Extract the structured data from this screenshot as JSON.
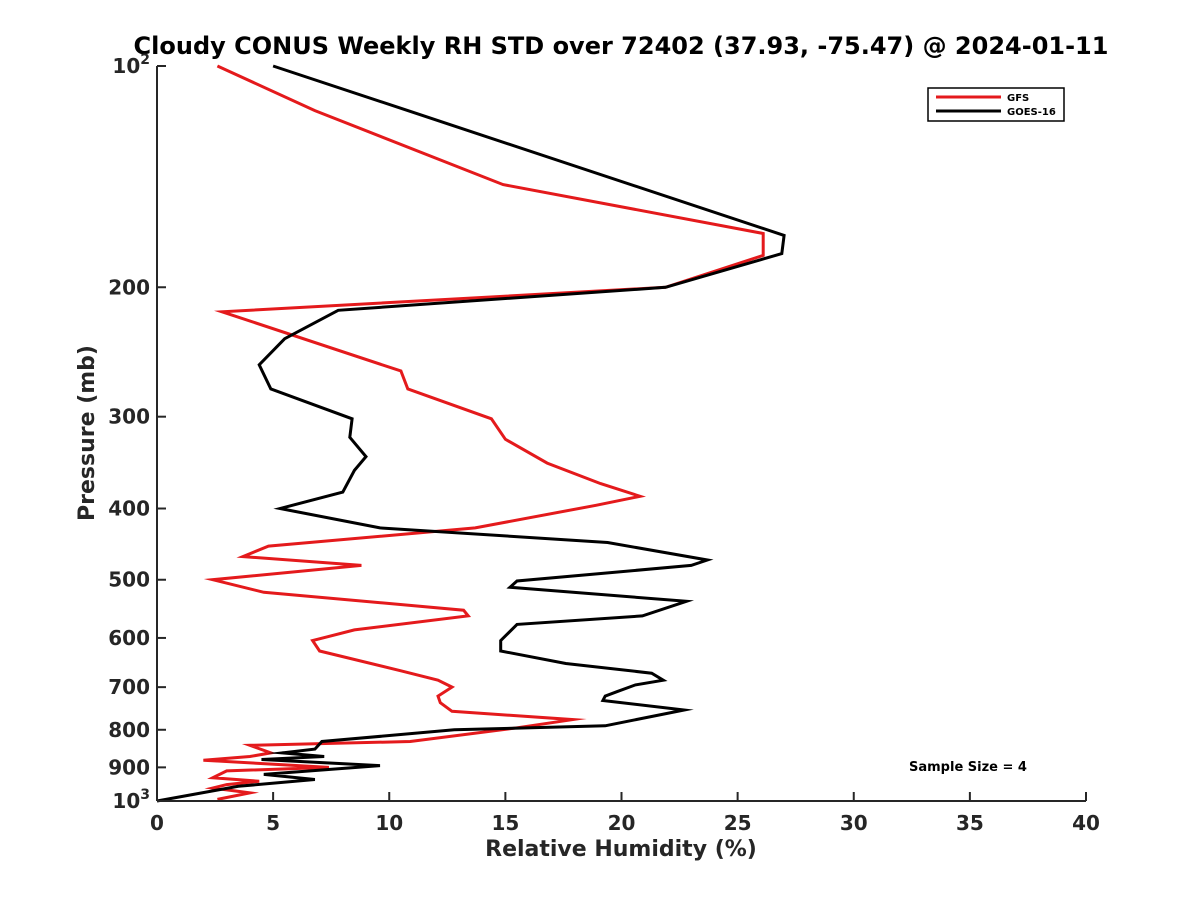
{
  "chart_data": {
    "type": "line",
    "title": "Cloudy CONUS Weekly RH STD over 72402 (37.93, -75.47) @ 2024-01-11",
    "xlabel": "Relative Humidity (%)",
    "ylabel": "Pressure (mb)",
    "xlim": [
      0,
      40
    ],
    "ylim": [
      100,
      1000
    ],
    "y_scale": "log",
    "y_reversed": true,
    "grid": false,
    "legend_position": "top-right",
    "x_ticks": [
      {
        "value": 0,
        "label": "0"
      },
      {
        "value": 5,
        "label": "5"
      },
      {
        "value": 10,
        "label": "10"
      },
      {
        "value": 15,
        "label": "15"
      },
      {
        "value": 20,
        "label": "20"
      },
      {
        "value": 25,
        "label": "25"
      },
      {
        "value": 30,
        "label": "30"
      },
      {
        "value": 35,
        "label": "35"
      },
      {
        "value": 40,
        "label": "40"
      }
    ],
    "y_ticks": [
      {
        "value": 100,
        "base": "10",
        "exp": "2"
      },
      {
        "value": 200,
        "base": "200",
        "exp": ""
      },
      {
        "value": 300,
        "base": "300",
        "exp": ""
      },
      {
        "value": 400,
        "base": "400",
        "exp": ""
      },
      {
        "value": 500,
        "base": "500",
        "exp": ""
      },
      {
        "value": 600,
        "base": "600",
        "exp": ""
      },
      {
        "value": 700,
        "base": "700",
        "exp": ""
      },
      {
        "value": 800,
        "base": "800",
        "exp": ""
      },
      {
        "value": 900,
        "base": "900",
        "exp": ""
      },
      {
        "value": 1000,
        "base": "10",
        "exp": "3"
      }
    ],
    "series": [
      {
        "name": "GFS",
        "color": "#e41a1c",
        "points": [
          [
            2.6,
            100
          ],
          [
            6.8,
            115
          ],
          [
            14.9,
            145
          ],
          [
            26.1,
            169
          ],
          [
            26.1,
            181
          ],
          [
            21.9,
            200
          ],
          [
            2.8,
            216
          ],
          [
            10.5,
            260
          ],
          [
            10.8,
            275
          ],
          [
            14.4,
            302
          ],
          [
            15.0,
            322
          ],
          [
            16.8,
            347
          ],
          [
            19.1,
            370
          ],
          [
            20.8,
            385
          ],
          [
            18.9,
            396
          ],
          [
            13.7,
            425
          ],
          [
            4.8,
            450
          ],
          [
            3.7,
            465
          ],
          [
            8.8,
            478
          ],
          [
            2.4,
            500
          ],
          [
            4.6,
            520
          ],
          [
            13.2,
            550
          ],
          [
            13.4,
            560
          ],
          [
            8.5,
            585
          ],
          [
            6.7,
            605
          ],
          [
            7.0,
            625
          ],
          [
            10.5,
            665
          ],
          [
            12.1,
            685
          ],
          [
            12.7,
            700
          ],
          [
            12.1,
            720
          ],
          [
            12.2,
            735
          ],
          [
            12.7,
            755
          ],
          [
            17.9,
            775
          ],
          [
            15.5,
            795
          ],
          [
            10.9,
            830
          ],
          [
            4.0,
            840
          ],
          [
            4.9,
            860
          ],
          [
            4.0,
            870
          ],
          [
            2.0,
            880
          ],
          [
            7.4,
            900
          ],
          [
            3.0,
            910
          ],
          [
            2.4,
            930
          ],
          [
            4.4,
            940
          ],
          [
            3.0,
            950
          ],
          [
            2.4,
            960
          ],
          [
            4.0,
            975
          ],
          [
            2.6,
            995
          ]
        ]
      },
      {
        "name": "GOES-16",
        "color": "#000000",
        "points": [
          [
            5.0,
            100
          ],
          [
            10.8,
            115
          ],
          [
            27.0,
            170
          ],
          [
            26.9,
            180
          ],
          [
            21.9,
            200
          ],
          [
            7.8,
            215
          ],
          [
            5.5,
            235
          ],
          [
            4.4,
            255
          ],
          [
            4.9,
            275
          ],
          [
            8.4,
            302
          ],
          [
            8.3,
            320
          ],
          [
            9.0,
            340
          ],
          [
            8.5,
            355
          ],
          [
            8.0,
            380
          ],
          [
            5.3,
            400
          ],
          [
            9.6,
            425
          ],
          [
            19.4,
            445
          ],
          [
            23.7,
            470
          ],
          [
            23.0,
            478
          ],
          [
            15.5,
            502
          ],
          [
            15.2,
            512
          ],
          [
            22.8,
            535
          ],
          [
            20.9,
            560
          ],
          [
            15.5,
            575
          ],
          [
            14.8,
            605
          ],
          [
            14.8,
            625
          ],
          [
            17.6,
            650
          ],
          [
            21.3,
            670
          ],
          [
            21.8,
            685
          ],
          [
            20.6,
            695
          ],
          [
            19.8,
            710
          ],
          [
            19.3,
            720
          ],
          [
            19.2,
            730
          ],
          [
            22.7,
            752
          ],
          [
            19.3,
            790
          ],
          [
            12.8,
            800
          ],
          [
            7.1,
            830
          ],
          [
            6.8,
            850
          ],
          [
            5.4,
            860
          ],
          [
            7.2,
            870
          ],
          [
            4.5,
            878
          ],
          [
            9.6,
            895
          ],
          [
            4.6,
            920
          ],
          [
            6.8,
            935
          ],
          [
            3.5,
            955
          ],
          [
            0.0,
            1000
          ]
        ]
      }
    ],
    "annotation": "Sample Size = 4"
  }
}
